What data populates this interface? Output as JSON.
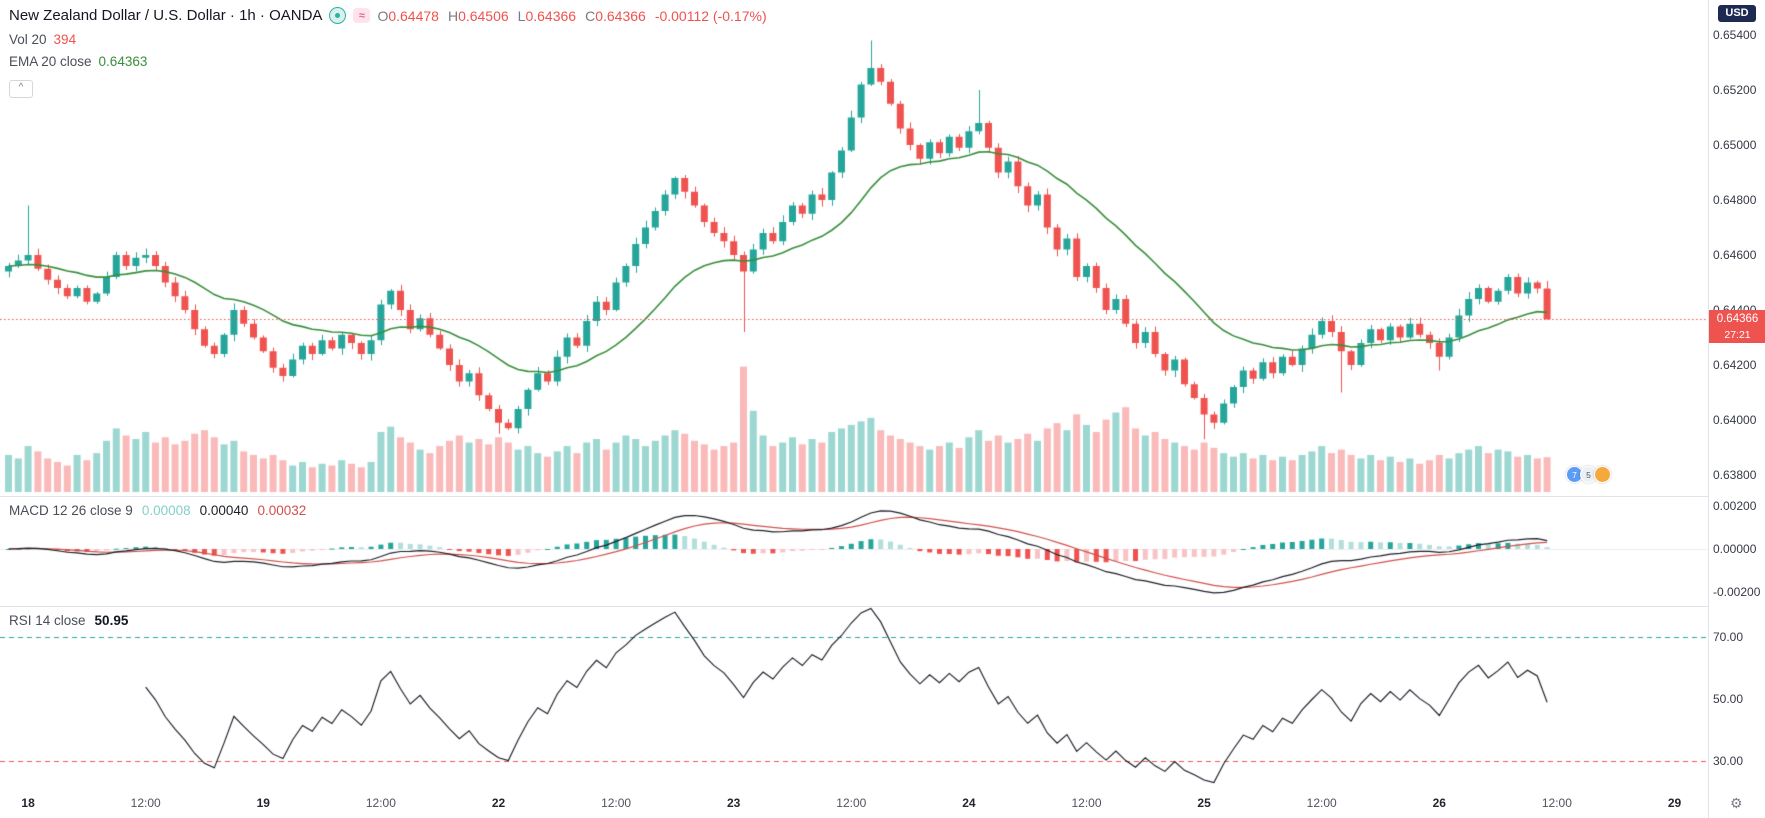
{
  "header": {
    "title": "New Zealand Dollar / U.S. Dollar · 1h · OANDA",
    "ohlc_items": [
      {
        "k": "O",
        "v": "0.64478"
      },
      {
        "k": "H",
        "v": "0.64506"
      },
      {
        "k": "L",
        "v": "0.64366"
      },
      {
        "k": "C",
        "v": "0.64366"
      }
    ],
    "change": "-0.00112 (-0.17%)",
    "vol_label": "Vol 20",
    "vol_value": "394",
    "ema_label": "EMA 20 close",
    "ema_value": "0.64363"
  },
  "macd_legend": {
    "label": "MACD 12 26 close 9",
    "hist": "0.00008",
    "macd": "0.00040",
    "signal": "0.00032"
  },
  "rsi_legend": {
    "label": "RSI 14 close",
    "value": "50.95"
  },
  "badges": {
    "currency": "USD",
    "last_price": "0.64366",
    "countdown": "27:21",
    "traders": [
      "7",
      "5",
      ""
    ]
  },
  "controls": {
    "collapse": "^",
    "gear": "⚙",
    "wave_icon": "≈"
  },
  "axes": {
    "price_ticks": [
      {
        "v": 0.654,
        "label": "0.65400"
      },
      {
        "v": 0.652,
        "label": "0.65200"
      },
      {
        "v": 0.65,
        "label": "0.65000"
      },
      {
        "v": 0.648,
        "label": "0.64800"
      },
      {
        "v": 0.646,
        "label": "0.64600"
      },
      {
        "v": 0.644,
        "label": "0.64400"
      },
      {
        "v": 0.642,
        "label": "0.64200"
      },
      {
        "v": 0.64,
        "label": "0.64000"
      },
      {
        "v": 0.638,
        "label": "0.63800"
      }
    ],
    "macd_ticks": [
      {
        "v": 0.002,
        "label": "0.00200"
      },
      {
        "v": 0.0,
        "label": "0.00000"
      },
      {
        "v": -0.002,
        "label": "-0.00200"
      }
    ],
    "rsi_ticks": [
      {
        "v": 70,
        "label": "70.00"
      },
      {
        "v": 50,
        "label": "50.00"
      },
      {
        "v": 30,
        "label": "30.00"
      }
    ],
    "time_ticks": [
      {
        "bar": 2,
        "label": "18"
      },
      {
        "bar": 14,
        "label": "12:00"
      },
      {
        "bar": 26,
        "label": "19"
      },
      {
        "bar": 38,
        "label": "12:00"
      },
      {
        "bar": 50,
        "label": "22"
      },
      {
        "bar": 62,
        "label": "12:00"
      },
      {
        "bar": 74,
        "label": "23"
      },
      {
        "bar": 86,
        "label": "12:00"
      },
      {
        "bar": 98,
        "label": "24"
      },
      {
        "bar": 110,
        "label": "12:00"
      },
      {
        "bar": 122,
        "label": "25"
      },
      {
        "bar": 134,
        "label": "12:00"
      },
      {
        "bar": 146,
        "label": "26"
      },
      {
        "bar": 158,
        "label": "12:00"
      },
      {
        "bar": 170,
        "label": "29"
      }
    ]
  },
  "colors": {
    "up": "#26a69a",
    "down": "#ef5350",
    "vol_up": "rgba(38,166,154,0.45)",
    "vol_down": "rgba(239,83,80,0.40)",
    "ema": "#388e3c",
    "macd_line": "#1b1f27",
    "signal_line": "#cf514d",
    "hist_up": "#26a69a",
    "hist_up_weak": "#b2dfdb",
    "hist_down": "#ef5350",
    "hist_down_weak": "#f7c4c6",
    "rsi_line": "#131722",
    "rsi_upper": "#26a69a",
    "rsi_lower": "#ef5350",
    "last_price_badge": "#ef5350",
    "currency_badge": "#1d2b53",
    "legend_hist_value": "#85cfc6",
    "legend_macd_value": "#1b1f27",
    "legend_signal_value": "#cf514d",
    "axis_text": "#363a45",
    "pane_divider": "#e0e3eb"
  },
  "chart_data": {
    "type": "candlestick",
    "symbol": "NZD/USD",
    "interval": "1h",
    "venue": "OANDA",
    "price_axis_range": [
      0.638,
      0.654
    ],
    "first_open": 0.6454,
    "closes": [
      0.6456,
      0.6458,
      0.646,
      0.6455,
      0.6451,
      0.6448,
      0.6445,
      0.6448,
      0.6443,
      0.6446,
      0.6452,
      0.646,
      0.6456,
      0.6459,
      0.646,
      0.6456,
      0.645,
      0.6445,
      0.644,
      0.6433,
      0.6427,
      0.6424,
      0.6431,
      0.644,
      0.6435,
      0.643,
      0.6425,
      0.6419,
      0.6416,
      0.6422,
      0.6427,
      0.6424,
      0.6429,
      0.6426,
      0.6431,
      0.6428,
      0.6424,
      0.6429,
      0.6442,
      0.6447,
      0.644,
      0.6433,
      0.6437,
      0.6431,
      0.6426,
      0.642,
      0.6414,
      0.6417,
      0.6409,
      0.6404,
      0.6399,
      0.6397,
      0.6404,
      0.6411,
      0.6417,
      0.6414,
      0.6423,
      0.643,
      0.6427,
      0.6436,
      0.6443,
      0.644,
      0.645,
      0.6456,
      0.6464,
      0.647,
      0.6476,
      0.6482,
      0.6488,
      0.6483,
      0.6478,
      0.6472,
      0.6468,
      0.6465,
      0.646,
      0.6454,
      0.6462,
      0.6468,
      0.6465,
      0.6472,
      0.6478,
      0.6475,
      0.6482,
      0.648,
      0.649,
      0.6498,
      0.651,
      0.6522,
      0.6528,
      0.6523,
      0.6515,
      0.6506,
      0.65,
      0.6495,
      0.6501,
      0.6497,
      0.6503,
      0.6499,
      0.6505,
      0.6508,
      0.6499,
      0.649,
      0.6494,
      0.6485,
      0.6478,
      0.6482,
      0.647,
      0.6462,
      0.6466,
      0.6452,
      0.6456,
      0.6448,
      0.644,
      0.6444,
      0.6435,
      0.6428,
      0.6432,
      0.6424,
      0.6418,
      0.6422,
      0.6413,
      0.6408,
      0.6402,
      0.6399,
      0.6406,
      0.6412,
      0.6418,
      0.6415,
      0.6421,
      0.6417,
      0.6423,
      0.642,
      0.6426,
      0.6431,
      0.6436,
      0.6432,
      0.6425,
      0.642,
      0.6428,
      0.6433,
      0.6429,
      0.6434,
      0.643,
      0.6435,
      0.6431,
      0.6428,
      0.6423,
      0.643,
      0.6438,
      0.6444,
      0.6448,
      0.6443,
      0.6447,
      0.6452,
      0.6446,
      0.645,
      0.64478,
      0.64366
    ],
    "volumes": [
      420,
      380,
      520,
      460,
      380,
      340,
      300,
      420,
      360,
      440,
      580,
      720,
      640,
      600,
      680,
      560,
      620,
      540,
      580,
      660,
      700,
      620,
      540,
      580,
      460,
      420,
      380,
      420,
      360,
      300,
      340,
      280,
      320,
      300,
      360,
      320,
      280,
      340,
      680,
      740,
      620,
      560,
      480,
      440,
      520,
      580,
      640,
      560,
      600,
      540,
      620,
      560,
      480,
      520,
      440,
      400,
      460,
      520,
      440,
      560,
      600,
      480,
      560,
      640,
      600,
      520,
      580,
      640,
      700,
      660,
      580,
      540,
      480,
      520,
      560,
      1420,
      920,
      640,
      520,
      560,
      620,
      540,
      600,
      560,
      680,
      720,
      760,
      800,
      840,
      700,
      640,
      600,
      560,
      520,
      480,
      520,
      560,
      500,
      620,
      700,
      580,
      640,
      560,
      600,
      660,
      580,
      720,
      780,
      700,
      880,
      760,
      680,
      820,
      900,
      960,
      720,
      640,
      680,
      600,
      560,
      520,
      480,
      560,
      500,
      440,
      400,
      440,
      380,
      420,
      360,
      400,
      360,
      420,
      460,
      520,
      440,
      480,
      420,
      380,
      420,
      360,
      400,
      340,
      380,
      320,
      360,
      420,
      380,
      440,
      480,
      520,
      440,
      480,
      460,
      400,
      420,
      380,
      394
    ],
    "wick_overrides": {
      "2": {
        "high": 0.6478
      },
      "50": {
        "low": 0.6395
      },
      "75": {
        "low": 0.6432
      },
      "88": {
        "high": 0.6538
      },
      "99": {
        "high": 0.652
      },
      "122": {
        "low": 0.6393
      },
      "136": {
        "low": 0.641
      },
      "146": {
        "low": 0.6418
      },
      "157": {
        "high": 0.64506,
        "low": 0.64366
      }
    },
    "last_candle": {
      "open": 0.64478,
      "high": 0.64506,
      "low": 0.64366,
      "close": 0.64366
    },
    "last_price_line": 0.64366,
    "overlays": {
      "ema_period": 20,
      "ema_last": 0.64363
    },
    "panels": {
      "volume": {
        "ma_period": 20,
        "last": 394,
        "scale_max": 1450
      },
      "macd": {
        "fast": 12,
        "slow": 26,
        "source": "close",
        "signal": 9,
        "last_hist": 8e-05,
        "last_macd": 0.0004,
        "last_signal": 0.00032,
        "axis_range": [
          -0.002,
          0.002
        ]
      },
      "rsi": {
        "period": 14,
        "source": "close",
        "last": 50.95,
        "bands": [
          70,
          30
        ],
        "axis_range": [
          20,
          80
        ]
      }
    }
  }
}
